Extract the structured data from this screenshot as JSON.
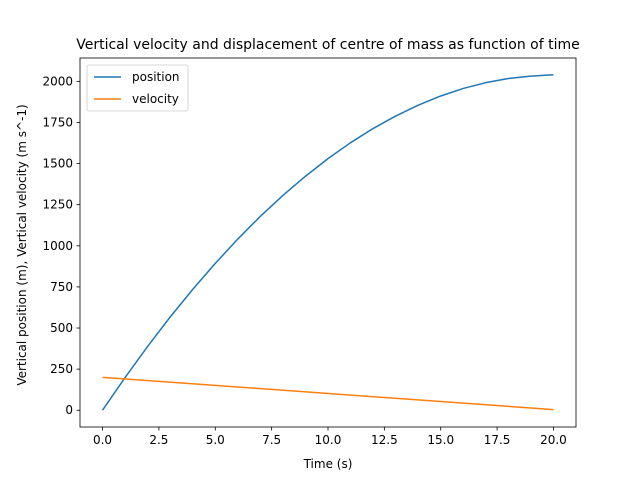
{
  "chart_data": {
    "type": "line",
    "title": "Vertical velocity and displacement of centre of mass as function of time",
    "xlabel": "Time (s)",
    "ylabel": "Vertical position (m), Vertical velocity (m s^-1)",
    "xlim": [
      -1.0,
      21.0
    ],
    "ylim": [
      -102,
      2142
    ],
    "xticks": [
      0.0,
      2.5,
      5.0,
      7.5,
      10.0,
      12.5,
      15.0,
      17.5,
      20.0
    ],
    "xtick_labels": [
      "0.0",
      "2.5",
      "5.0",
      "7.5",
      "10.0",
      "12.5",
      "15.0",
      "17.5",
      "20.0"
    ],
    "yticks": [
      0,
      250,
      500,
      750,
      1000,
      1250,
      1500,
      1750,
      2000
    ],
    "ytick_labels": [
      "0",
      "250",
      "500",
      "750",
      "1000",
      "1250",
      "1500",
      "1750",
      "2000"
    ],
    "grid": false,
    "legend_position": "top-left",
    "series": [
      {
        "name": "position",
        "color": "#1f77b4",
        "x": [
          0,
          1,
          2,
          3,
          4,
          5,
          6,
          7,
          8,
          9,
          10,
          11,
          12,
          13,
          14,
          15,
          16,
          17,
          18,
          19,
          20
        ],
        "y": [
          0,
          199,
          388,
          567,
          735,
          893,
          1041,
          1179,
          1306,
          1423,
          1530,
          1627,
          1713,
          1789,
          1855,
          1911,
          1957,
          1992,
          2017,
          2032,
          2040
        ]
      },
      {
        "name": "velocity",
        "color": "#ff7f0e",
        "x": [
          0,
          20
        ],
        "y": [
          200,
          4
        ]
      }
    ]
  }
}
